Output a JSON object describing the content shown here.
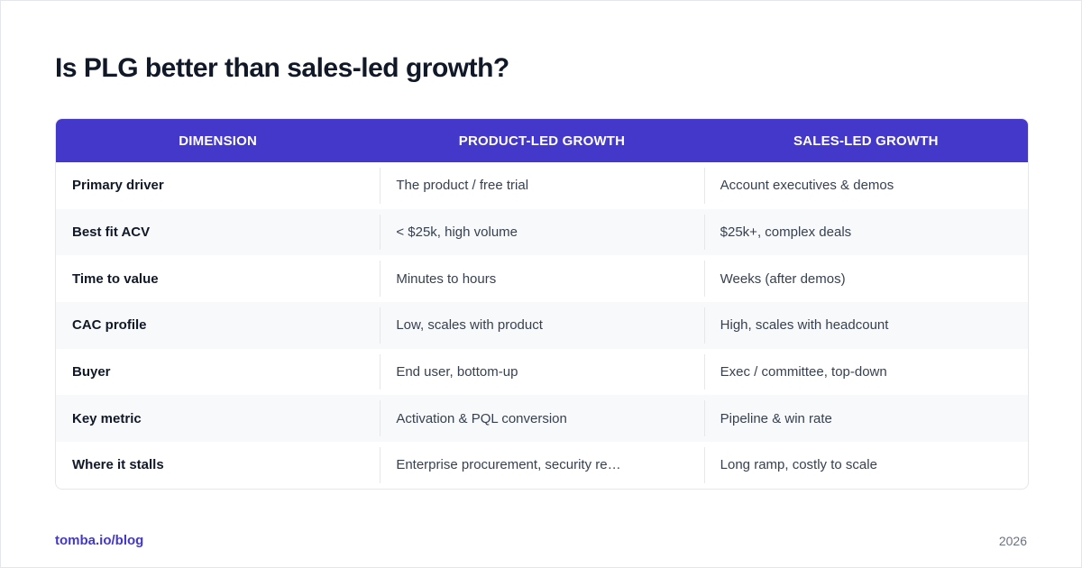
{
  "title": "Is PLG better than sales-led growth?",
  "table": {
    "headers": [
      "DIMENSION",
      "PRODUCT-LED GROWTH",
      "SALES-LED GROWTH"
    ],
    "rows": [
      [
        "Primary driver",
        "The product / free trial",
        "Account executives & demos"
      ],
      [
        "Best fit ACV",
        "< $25k, high volume",
        "$25k+, complex deals"
      ],
      [
        "Time to value",
        "Minutes to hours",
        "Weeks (after demos)"
      ],
      [
        "CAC profile",
        "Low, scales with product",
        "High, scales with headcount"
      ],
      [
        "Buyer",
        "End user, bottom-up",
        "Exec / committee, top-down"
      ],
      [
        "Key metric",
        "Activation & PQL conversion",
        "Pipeline & win rate"
      ],
      [
        "Where it stalls",
        "Enterprise procurement, security re…",
        "Long ramp, costly to scale"
      ]
    ]
  },
  "footer": {
    "link": "tomba.io/blog",
    "year": "2026"
  },
  "colors": {
    "header_bg": "#4338ca",
    "accent": "#4338ca",
    "row_alt": "#f8f9fb"
  }
}
